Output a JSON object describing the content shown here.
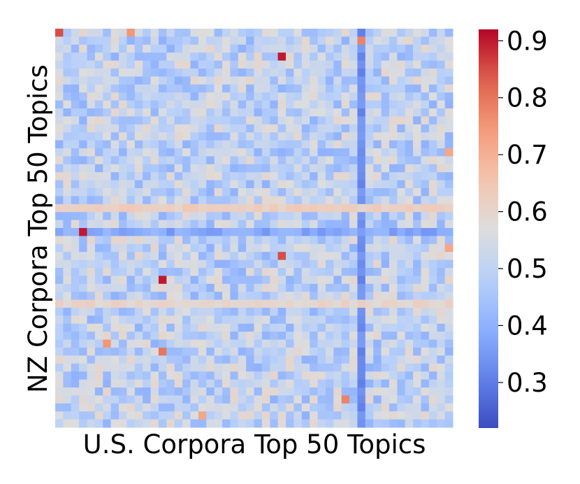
{
  "chart_data": {
    "type": "heatmap",
    "xlabel": "U.S. Corpora Top 50 Topics",
    "ylabel": "NZ Corpora Top 50 Topics",
    "rows": 50,
    "cols": 50,
    "colormap": "coolwarm",
    "vmin": 0.22,
    "vmax": 0.92,
    "colorbar_ticks": [
      0.3,
      0.4,
      0.5,
      0.6,
      0.7,
      0.8,
      0.9
    ],
    "colorbar_tick_labels": [
      "0.3",
      "0.4",
      "0.5",
      "0.6",
      "0.7",
      "0.8",
      "0.9"
    ],
    "baseline_value": 0.5,
    "low_columns": [
      {
        "col": 38,
        "value": 0.33
      }
    ],
    "low_rows": [
      {
        "row": 25,
        "value": 0.38
      }
    ],
    "high_rows": [
      {
        "row": 22,
        "value": 0.62
      },
      {
        "row": 34,
        "value": 0.6
      }
    ],
    "notable_cells": [
      {
        "row": 0,
        "col": 0,
        "value": 0.85
      },
      {
        "row": 0,
        "col": 9,
        "value": 0.75
      },
      {
        "row": 3,
        "col": 28,
        "value": 0.9
      },
      {
        "row": 25,
        "col": 3,
        "value": 0.9
      },
      {
        "row": 28,
        "col": 28,
        "value": 0.85
      },
      {
        "row": 31,
        "col": 13,
        "value": 0.9
      },
      {
        "row": 39,
        "col": 6,
        "value": 0.75
      },
      {
        "row": 40,
        "col": 13,
        "value": 0.8
      },
      {
        "row": 46,
        "col": 36,
        "value": 0.78
      },
      {
        "row": 48,
        "col": 18,
        "value": 0.72
      },
      {
        "row": 1,
        "col": 38,
        "value": 0.78
      },
      {
        "row": 15,
        "col": 49,
        "value": 0.72
      },
      {
        "row": 27,
        "col": 49,
        "value": 0.72
      }
    ]
  }
}
